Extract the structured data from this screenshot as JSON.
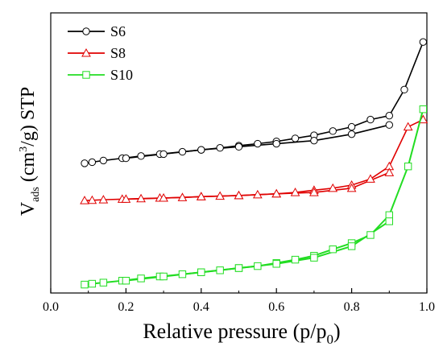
{
  "chart_data": {
    "type": "line",
    "title": "",
    "xlabel": "Relative pressure (p/p",
    "xlabel_sub": "0",
    "xlabel_close": ")",
    "ylabel_v": "V",
    "ylabel_sub": "ads",
    "ylabel_rest1": " (cm",
    "ylabel_sup": "3",
    "ylabel_rest2": "/g) STP",
    "xlim": [
      0.0,
      1.0
    ],
    "ylim": [
      0,
      100
    ],
    "y_ticks_shown": false,
    "x_ticks": [
      {
        "value": 0.0,
        "label": "0.0"
      },
      {
        "value": 0.2,
        "label": "0.2"
      },
      {
        "value": 0.4,
        "label": "0.4"
      },
      {
        "value": 0.6,
        "label": "0.6"
      },
      {
        "value": 0.8,
        "label": "0.8"
      },
      {
        "value": 1.0,
        "label": "1.0"
      }
    ],
    "legend_position": "top-left",
    "series": [
      {
        "name": "S6",
        "color": "#000000",
        "marker": "circle",
        "adsorption": {
          "x": [
            0.09,
            0.11,
            0.14,
            0.19,
            0.24,
            0.29,
            0.35,
            0.4,
            0.45,
            0.5,
            0.55,
            0.6,
            0.65,
            0.7,
            0.75,
            0.8,
            0.85,
            0.9,
            0.94,
            0.99
          ],
          "y": [
            46.3,
            46.7,
            47.3,
            48.1,
            48.9,
            49.6,
            50.4,
            51.1,
            51.8,
            52.6,
            53.3,
            54.1,
            55.2,
            56.3,
            57.8,
            59.3,
            61.9,
            63.3,
            72.6,
            89.6
          ]
        },
        "desorption": {
          "x": [
            0.9,
            0.8,
            0.7,
            0.6,
            0.5,
            0.4,
            0.3,
            0.2
          ],
          "y": [
            60.0,
            56.7,
            54.4,
            53.3,
            52.2,
            51.1,
            49.6,
            48.1
          ]
        }
      },
      {
        "name": "S8",
        "color": "#e00000",
        "marker": "triangle",
        "adsorption": {
          "x": [
            0.09,
            0.11,
            0.14,
            0.19,
            0.24,
            0.29,
            0.35,
            0.4,
            0.45,
            0.5,
            0.55,
            0.6,
            0.65,
            0.7,
            0.75,
            0.8,
            0.85,
            0.9,
            0.95,
            0.99
          ],
          "y": [
            33.0,
            33.1,
            33.3,
            33.5,
            33.7,
            33.9,
            34.1,
            34.4,
            34.6,
            34.8,
            35.1,
            35.4,
            35.9,
            36.7,
            37.4,
            38.5,
            40.7,
            45.2,
            59.3,
            61.9
          ]
        },
        "desorption": {
          "x": [
            0.9,
            0.8,
            0.7,
            0.6,
            0.5,
            0.4,
            0.3,
            0.2
          ],
          "y": [
            43.0,
            37.4,
            35.9,
            35.4,
            34.8,
            34.4,
            33.9,
            33.5
          ]
        }
      },
      {
        "name": "S10",
        "color": "#22dd22",
        "marker": "square",
        "adsorption": {
          "x": [
            0.09,
            0.11,
            0.14,
            0.19,
            0.24,
            0.29,
            0.35,
            0.4,
            0.45,
            0.5,
            0.55,
            0.6,
            0.65,
            0.7,
            0.75,
            0.8,
            0.85,
            0.9,
            0.95,
            0.99
          ],
          "y": [
            3.0,
            3.3,
            3.7,
            4.4,
            5.2,
            5.9,
            6.7,
            7.4,
            8.1,
            8.9,
            9.6,
            10.7,
            11.9,
            13.3,
            15.6,
            17.8,
            20.7,
            27.8,
            45.2,
            65.6
          ]
        },
        "desorption": {
          "x": [
            0.9,
            0.8,
            0.7,
            0.6,
            0.5,
            0.4,
            0.3,
            0.2
          ],
          "y": [
            25.6,
            16.7,
            12.6,
            10.4,
            8.9,
            7.4,
            5.9,
            4.4
          ]
        }
      }
    ]
  }
}
